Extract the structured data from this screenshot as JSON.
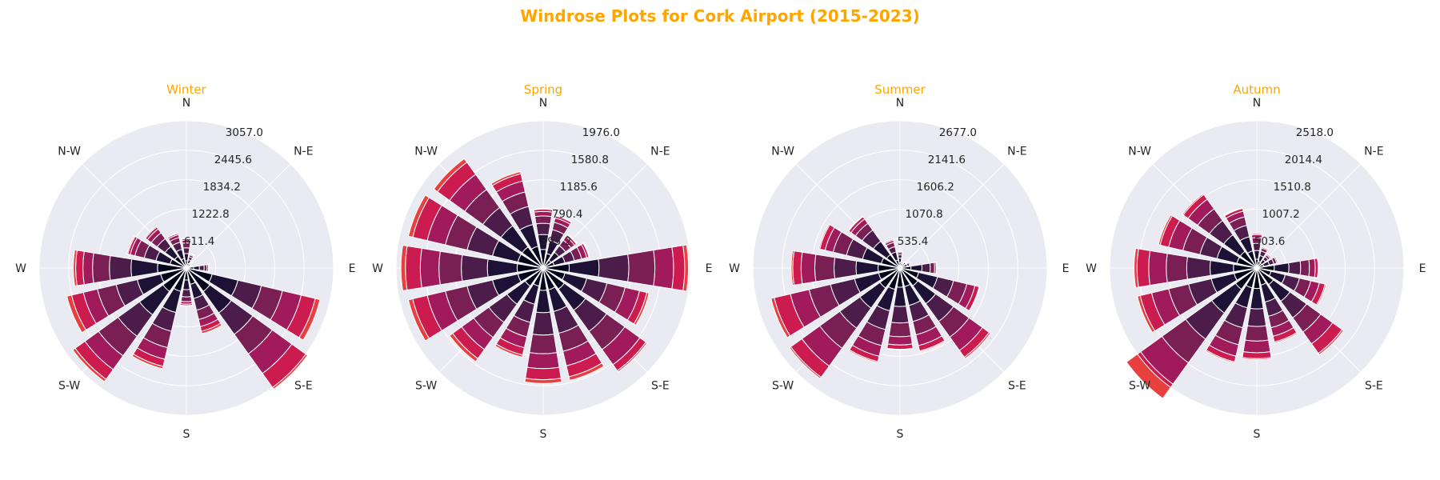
{
  "figure": {
    "title": "Windrose Plots for Cork Airport (2015-2023)",
    "colors": {
      "title": "#FFA500",
      "background": "#EAEAF2",
      "grid": "#FFFFFF",
      "speed_bins": [
        "#03051A",
        "#1E1136",
        "#4C1D4B",
        "#7A1F54",
        "#A11A5B",
        "#CB1B4F",
        "#E83F3F"
      ]
    }
  },
  "chart_data": [
    {
      "type": "windrose",
      "title": "Winter",
      "directions": [
        "E",
        "N-E",
        "N",
        "N-W",
        "W",
        "S-W",
        "S",
        "S-E"
      ],
      "rmax": 3057.0,
      "radial_ticks": [
        "611.4",
        "1222.8",
        "1834.2",
        "2445.6",
        "3057.0"
      ],
      "bins_per_sector": 7,
      "sectors": [
        {
          "angle": 0,
          "values": [
            150,
            120,
            100,
            60,
            30,
            10,
            5
          ]
        },
        {
          "angle": 22.5,
          "values": [
            40,
            20,
            10,
            5,
            0,
            0,
            0
          ]
        },
        {
          "angle": 45,
          "values": [
            60,
            40,
            20,
            10,
            5,
            0,
            0
          ]
        },
        {
          "angle": 67.5,
          "values": [
            100,
            80,
            60,
            40,
            20,
            10,
            5
          ]
        },
        {
          "angle": 90,
          "values": [
            150,
            150,
            120,
            100,
            60,
            30,
            10
          ]
        },
        {
          "angle": 112.5,
          "values": [
            200,
            200,
            150,
            100,
            60,
            30,
            10
          ]
        },
        {
          "angle": 135,
          "values": [
            300,
            250,
            200,
            150,
            100,
            50,
            20
          ]
        },
        {
          "angle": 157.5,
          "values": [
            350,
            300,
            250,
            200,
            100,
            50,
            20
          ]
        },
        {
          "angle": 180,
          "values": [
            600,
            550,
            450,
            350,
            200,
            150,
            50
          ]
        },
        {
          "angle": 202.5,
          "values": [
            550,
            500,
            450,
            400,
            300,
            250,
            100
          ]
        },
        {
          "angle": 225,
          "values": [
            600,
            600,
            550,
            500,
            350,
            250,
            60
          ]
        },
        {
          "angle": 247.5,
          "values": [
            500,
            450,
            400,
            350,
            250,
            150,
            50
          ]
        },
        {
          "angle": 270,
          "values": [
            250,
            200,
            150,
            100,
            50,
            30,
            10
          ]
        },
        {
          "angle": 292.5,
          "values": [
            350,
            300,
            250,
            200,
            150,
            100,
            50
          ]
        },
        {
          "angle": 315,
          "values": [
            600,
            550,
            550,
            500,
            500,
            400,
            100
          ]
        },
        {
          "angle": 337.5,
          "values": [
            550,
            550,
            500,
            450,
            400,
            300,
            100
          ]
        }
      ]
    },
    {
      "type": "windrose",
      "title": "Spring",
      "directions": [
        "E",
        "N-E",
        "N",
        "N-W",
        "W",
        "S-W",
        "S",
        "S-E"
      ],
      "rmax": 1976.0,
      "radial_ticks": [
        "395.2",
        "790.4",
        "1185.6",
        "1580.8",
        "1976.0"
      ],
      "bins_per_sector": 7,
      "sectors": [
        {
          "angle": 0,
          "values": [
            350,
            400,
            400,
            350,
            250,
            150,
            50
          ]
        },
        {
          "angle": 22.5,
          "values": [
            150,
            150,
            130,
            100,
            70,
            30,
            10
          ]
        },
        {
          "angle": 45,
          "values": [
            130,
            130,
            110,
            90,
            60,
            30,
            10
          ]
        },
        {
          "angle": 67.5,
          "values": [
            200,
            180,
            150,
            100,
            60,
            30,
            10
          ]
        },
        {
          "angle": 90,
          "values": [
            250,
            200,
            150,
            100,
            60,
            30,
            10
          ]
        },
        {
          "angle": 112.5,
          "values": [
            300,
            300,
            250,
            200,
            150,
            100,
            30
          ]
        },
        {
          "angle": 135,
          "values": [
            350,
            350,
            300,
            300,
            250,
            200,
            60
          ]
        },
        {
          "angle": 157.5,
          "values": [
            350,
            350,
            350,
            300,
            250,
            200,
            60
          ]
        },
        {
          "angle": 180,
          "values": [
            350,
            400,
            350,
            300,
            250,
            200,
            60
          ]
        },
        {
          "angle": 202.5,
          "values": [
            350,
            350,
            350,
            300,
            250,
            200,
            60
          ]
        },
        {
          "angle": 225,
          "values": [
            300,
            300,
            300,
            250,
            200,
            150,
            50
          ]
        },
        {
          "angle": 247.5,
          "values": [
            250,
            250,
            250,
            200,
            150,
            100,
            30
          ]
        },
        {
          "angle": 270,
          "values": [
            300,
            300,
            300,
            250,
            200,
            150,
            50
          ]
        },
        {
          "angle": 292.5,
          "values": [
            300,
            300,
            300,
            250,
            200,
            150,
            50
          ]
        },
        {
          "angle": 315,
          "values": [
            350,
            350,
            350,
            300,
            250,
            100,
            20
          ]
        },
        {
          "angle": 337.5,
          "values": [
            300,
            300,
            280,
            250,
            200,
            100,
            30
          ]
        }
      ]
    },
    {
      "type": "windrose",
      "title": "Summer",
      "directions": [
        "E",
        "N-E",
        "N",
        "N-W",
        "W",
        "S-W",
        "S",
        "S-E"
      ],
      "rmax": 2677.0,
      "radial_ticks": [
        "535.4",
        "1070.8",
        "1606.2",
        "2141.6",
        "2677.0"
      ],
      "bins_per_sector": 7,
      "sectors": [
        {
          "angle": 0,
          "values": [
            200,
            200,
            150,
            80,
            30,
            10,
            0
          ]
        },
        {
          "angle": 22.5,
          "values": [
            80,
            60,
            40,
            20,
            10,
            0,
            0
          ]
        },
        {
          "angle": 45,
          "values": [
            60,
            40,
            30,
            10,
            0,
            0,
            0
          ]
        },
        {
          "angle": 67.5,
          "values": [
            50,
            40,
            20,
            10,
            0,
            0,
            0
          ]
        },
        {
          "angle": 90,
          "values": [
            100,
            80,
            60,
            40,
            20,
            10,
            0
          ]
        },
        {
          "angle": 112.5,
          "values": [
            150,
            150,
            100,
            80,
            40,
            20,
            5
          ]
        },
        {
          "angle": 135,
          "values": [
            300,
            300,
            250,
            150,
            100,
            50,
            10
          ]
        },
        {
          "angle": 157.5,
          "values": [
            350,
            350,
            300,
            250,
            150,
            100,
            20
          ]
        },
        {
          "angle": 180,
          "values": [
            400,
            400,
            400,
            350,
            250,
            150,
            30
          ]
        },
        {
          "angle": 202.5,
          "values": [
            400,
            450,
            450,
            400,
            350,
            300,
            60
          ]
        },
        {
          "angle": 225,
          "values": [
            450,
            450,
            450,
            450,
            400,
            250,
            30
          ]
        },
        {
          "angle": 247.5,
          "values": [
            400,
            400,
            350,
            300,
            200,
            100,
            20
          ]
        },
        {
          "angle": 270,
          "values": [
            350,
            350,
            300,
            250,
            150,
            80,
            10
          ]
        },
        {
          "angle": 292.5,
          "values": [
            350,
            350,
            300,
            250,
            200,
            100,
            20
          ]
        },
        {
          "angle": 315,
          "values": [
            400,
            400,
            400,
            350,
            300,
            150,
            30
          ]
        },
        {
          "angle": 337.5,
          "values": [
            350,
            350,
            300,
            250,
            150,
            80,
            10
          ]
        }
      ]
    },
    {
      "type": "windrose",
      "title": "Autumn",
      "directions": [
        "E",
        "N-E",
        "N",
        "N-W",
        "W",
        "S-W",
        "S",
        "S-E"
      ],
      "rmax": 2518.0,
      "radial_ticks": [
        "503.6",
        "1007.2",
        "1510.8",
        "2014.4",
        "2518.0"
      ],
      "bins_per_sector": 7,
      "sectors": [
        {
          "angle": 0,
          "values": [
            300,
            250,
            200,
            150,
            100,
            50,
            10
          ]
        },
        {
          "angle": 22.5,
          "values": [
            120,
            100,
            80,
            50,
            20,
            10,
            0
          ]
        },
        {
          "angle": 45,
          "values": [
            100,
            80,
            60,
            40,
            20,
            10,
            0
          ]
        },
        {
          "angle": 67.5,
          "values": [
            120,
            100,
            80,
            50,
            20,
            10,
            0
          ]
        },
        {
          "angle": 90,
          "values": [
            150,
            150,
            120,
            100,
            50,
            20,
            5
          ]
        },
        {
          "angle": 112.5,
          "values": [
            300,
            250,
            200,
            150,
            100,
            50,
            10
          ]
        },
        {
          "angle": 135,
          "values": [
            350,
            350,
            300,
            250,
            200,
            100,
            20
          ]
        },
        {
          "angle": 157.5,
          "values": [
            350,
            350,
            300,
            300,
            250,
            150,
            30
          ]
        },
        {
          "angle": 180,
          "values": [
            400,
            400,
            400,
            350,
            300,
            200,
            50
          ]
        },
        {
          "angle": 202.5,
          "values": [
            400,
            400,
            400,
            350,
            300,
            200,
            50
          ]
        },
        {
          "angle": 225,
          "values": [
            450,
            500,
            550,
            500,
            450,
            300,
            50
          ]
        },
        {
          "angle": 247.5,
          "values": [
            350,
            350,
            350,
            300,
            200,
            100,
            20
          ]
        },
        {
          "angle": 270,
          "values": [
            350,
            350,
            300,
            250,
            200,
            100,
            20
          ]
        },
        {
          "angle": 292.5,
          "values": [
            300,
            300,
            250,
            200,
            150,
            100,
            20
          ]
        },
        {
          "angle": 315,
          "values": [
            350,
            350,
            350,
            300,
            250,
            200,
            30
          ]
        },
        {
          "angle": 337.5,
          "values": [
            250,
            250,
            250,
            200,
            150,
            100,
            20
          ]
        }
      ]
    }
  ]
}
